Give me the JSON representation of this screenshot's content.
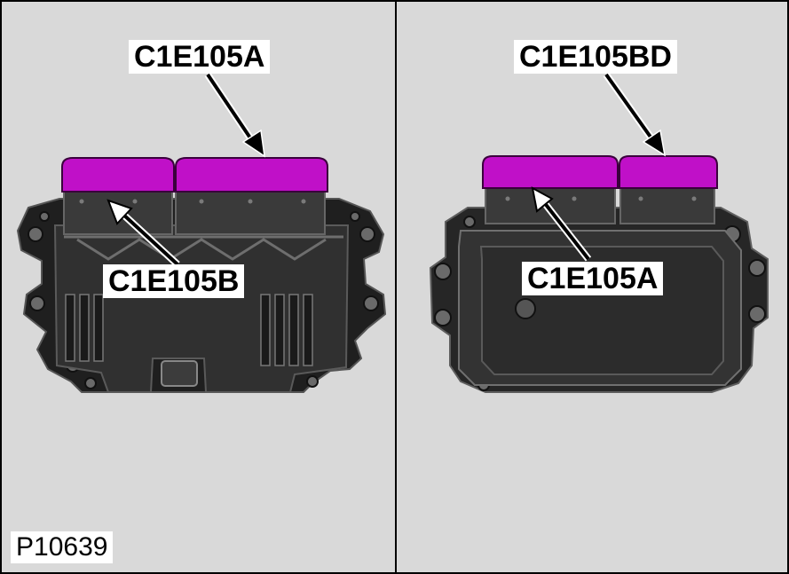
{
  "figure_id": "P10639",
  "left_panel": {
    "top_label": "C1E105A",
    "bottom_label": "C1E105B"
  },
  "right_panel": {
    "top_label": "C1E105BD",
    "bottom_label": "C1E105A"
  },
  "colors": {
    "background": "#d9d9d9",
    "connector": "#c010c8",
    "housing": "#2a2a2a",
    "arrow": "#000000"
  }
}
